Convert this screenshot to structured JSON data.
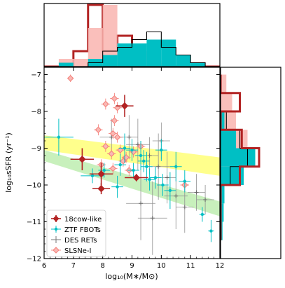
{
  "chart_data": {
    "type": "scatter",
    "xlabel": "log₁₀(M∗/M⊙)",
    "ylabel": "log₁₀sSFR (yr⁻¹)",
    "xlim": [
      6,
      12
    ],
    "ylim": [
      -12,
      -6.8
    ],
    "xticks": [
      6,
      7,
      8,
      9,
      10,
      11,
      12
    ],
    "xtick_labels": [
      "6",
      "7",
      "8",
      "9",
      "10",
      "11",
      "12"
    ],
    "yticks": [
      -12,
      -11,
      -10,
      -9,
      -8,
      -7
    ],
    "ytick_labels": [
      "−12",
      "−11",
      "−10",
      "−9",
      "−8",
      "−7"
    ],
    "grid": false,
    "legend_position": "lower-left",
    "colors": {
      "cow": "#b22222",
      "ztf": "#00bfc4",
      "des": "#909090",
      "slsn": "#f4837d",
      "slsn_fill": "#f9b8b4",
      "yellow_band": "#ffff66",
      "green_band": "#b6eba6",
      "top_des_hist": "#000000"
    },
    "series": [
      {
        "name": "18cow-like",
        "marker": "diamond-filled",
        "points": [
          {
            "x": 7.3,
            "y": -9.3,
            "xerr": 0.4,
            "yerr": 0.3
          },
          {
            "x": 7.95,
            "y": -9.7,
            "xerr": 0.4,
            "yerr": 0.3
          },
          {
            "x": 7.95,
            "y": -10.1,
            "xerr": 0.3,
            "yerr": 0.15
          },
          {
            "x": 8.75,
            "y": -7.85,
            "xerr": 0.3,
            "yerr": 0.3
          },
          {
            "x": 9.15,
            "y": -9.8,
            "xerr": 0.4,
            "yerr": 0.1
          }
        ]
      },
      {
        "name": "ZTF FBOTs",
        "marker": "dot",
        "points": [
          {
            "x": 6.5,
            "y": -8.7,
            "xerr": 0.5,
            "yerr": 0.5
          },
          {
            "x": 7.65,
            "y": -9.75,
            "xerr": 0.4,
            "yerr": 0.2
          },
          {
            "x": 8.05,
            "y": -9.6,
            "xerr": 0.2,
            "yerr": 0.2
          },
          {
            "x": 8.6,
            "y": -9.45,
            "xerr": 0.2,
            "yerr": 0.3
          },
          {
            "x": 8.75,
            "y": -9.0,
            "xerr": 0.2,
            "yerr": 0.4
          },
          {
            "x": 9.0,
            "y": -9.05,
            "xerr": 0.2,
            "yerr": 0.3
          },
          {
            "x": 9.3,
            "y": -9.2,
            "xerr": 0.2,
            "yerr": 0.4
          },
          {
            "x": 9.5,
            "y": -9.5,
            "xerr": 0.2,
            "yerr": 0.4
          },
          {
            "x": 9.6,
            "y": -9.85,
            "xerr": 0.2,
            "yerr": 0.3
          },
          {
            "x": 9.8,
            "y": -9.8,
            "xerr": 0.2,
            "yerr": 0.3
          },
          {
            "x": 10.05,
            "y": -10.0,
            "xerr": 0.2,
            "yerr": 0.3
          },
          {
            "x": 10.3,
            "y": -10.15,
            "xerr": 0.2,
            "yerr": 0.5
          },
          {
            "x": 10.5,
            "y": -9.5,
            "xerr": 0.2,
            "yerr": 0.4
          },
          {
            "x": 10.8,
            "y": -9.9,
            "xerr": 0.2,
            "yerr": 0.3
          },
          {
            "x": 11.7,
            "y": -11.25,
            "xerr": 0.1,
            "yerr": 0.3
          },
          {
            "x": 11.4,
            "y": -10.8,
            "xerr": 0.1,
            "yerr": 0.2
          },
          {
            "x": 8.5,
            "y": -10.05,
            "xerr": 0.2,
            "yerr": 0.3
          },
          {
            "x": 9.4,
            "y": -9.35,
            "xerr": 0.2,
            "yerr": 0.3
          },
          {
            "x": 10.0,
            "y": -9.05,
            "xerr": 0.2,
            "yerr": 0.3
          },
          {
            "x": 9.05,
            "y": -9.6,
            "xerr": 0.2,
            "yerr": 0.2
          }
        ]
      },
      {
        "name": "DES RETs",
        "marker": "plus",
        "points": [
          {
            "x": 8.3,
            "y": -8.7,
            "xerr": 0.4,
            "yerr": 0.5
          },
          {
            "x": 8.9,
            "y": -8.7,
            "xerr": 0.3,
            "yerr": 0.6
          },
          {
            "x": 9.2,
            "y": -8.9,
            "xerr": 0.4,
            "yerr": 0.7
          },
          {
            "x": 9.6,
            "y": -9.2,
            "xerr": 0.3,
            "yerr": 0.5
          },
          {
            "x": 9.9,
            "y": -9.5,
            "xerr": 0.4,
            "yerr": 0.9
          },
          {
            "x": 10.2,
            "y": -9.8,
            "xerr": 0.3,
            "yerr": 0.7
          },
          {
            "x": 10.5,
            "y": -10.3,
            "xerr": 0.4,
            "yerr": 0.9
          },
          {
            "x": 10.8,
            "y": -10.6,
            "xerr": 0.3,
            "yerr": 0.7
          },
          {
            "x": 11.2,
            "y": -10.2,
            "xerr": 0.3,
            "yerr": 0.5
          },
          {
            "x": 9.3,
            "y": -10.5,
            "xerr": 0.5,
            "yerr": 1.0
          },
          {
            "x": 9.7,
            "y": -10.9,
            "xerr": 0.5,
            "yerr": 1.0
          },
          {
            "x": 11.5,
            "y": -10.4,
            "xerr": 0.3,
            "yerr": 0.4
          },
          {
            "x": 10.0,
            "y": -8.8,
            "xerr": 0.3,
            "yerr": 0.5
          }
        ]
      },
      {
        "name": "SLSNe-I",
        "marker": "diamond-open",
        "points": [
          {
            "x": 6.9,
            "y": -7.1,
            "xerr": 0.1,
            "yerr": 0.1
          },
          {
            "x": 8.1,
            "y": -7.8,
            "xerr": 0.15,
            "yerr": 0.15
          },
          {
            "x": 8.4,
            "y": -7.65,
            "xerr": 0.15,
            "yerr": 0.15
          },
          {
            "x": 8.5,
            "y": -7.9,
            "xerr": 0.15,
            "yerr": 0.15
          },
          {
            "x": 8.4,
            "y": -8.25,
            "xerr": 0.15,
            "yerr": 0.15
          },
          {
            "x": 7.85,
            "y": -8.5,
            "xerr": 0.15,
            "yerr": 0.15
          },
          {
            "x": 8.35,
            "y": -8.6,
            "xerr": 0.15,
            "yerr": 0.15
          },
          {
            "x": 8.5,
            "y": -8.7,
            "xerr": 0.15,
            "yerr": 0.15
          },
          {
            "x": 8.1,
            "y": -8.95,
            "xerr": 0.15,
            "yerr": 0.15
          },
          {
            "x": 8.6,
            "y": -9.05,
            "xerr": 0.15,
            "yerr": 0.15
          },
          {
            "x": 8.3,
            "y": -9.15,
            "xerr": 0.15,
            "yerr": 0.15
          },
          {
            "x": 8.7,
            "y": -9.35,
            "xerr": 0.15,
            "yerr": 0.15
          },
          {
            "x": 8.35,
            "y": -9.55,
            "xerr": 0.15,
            "yerr": 0.15
          },
          {
            "x": 8.8,
            "y": -9.25,
            "xerr": 0.15,
            "yerr": 0.15
          },
          {
            "x": 9.05,
            "y": -9.1,
            "xerr": 0.15,
            "yerr": 0.15
          },
          {
            "x": 8.9,
            "y": -9.6,
            "xerr": 0.15,
            "yerr": 0.15
          },
          {
            "x": 10.8,
            "y": -10.0,
            "xerr": 0.15,
            "yerr": 0.15
          },
          {
            "x": 7.95,
            "y": -9.45,
            "xerr": 0.15,
            "yerr": 0.15
          },
          {
            "x": 9.3,
            "y": -8.95,
            "xerr": 0.15,
            "yerr": 0.15
          }
        ]
      }
    ],
    "bands": [
      {
        "color_key": "yellow_band",
        "x": [
          6,
          12
        ],
        "upper": [
          -8.65,
          -9.25
        ],
        "lower": [
          -9.05,
          -9.75
        ]
      },
      {
        "color_key": "green_band",
        "x": [
          6,
          12
        ],
        "upper": [
          -9.05,
          -10.45
        ],
        "lower": [
          -9.35,
          -10.85
        ]
      }
    ],
    "top_histogram": {
      "bins": [
        6,
        6.5,
        7,
        7.5,
        8,
        8.5,
        9,
        9.5,
        10,
        10.5,
        11,
        11.5,
        12
      ],
      "series": [
        {
          "name": "18cow-like",
          "counts": [
            0,
            0,
            0.4,
            1.6,
            0.4,
            0.8,
            0,
            0,
            0,
            0,
            0,
            0
          ],
          "style": "step-thick",
          "color_key": "cow"
        },
        {
          "name": "SLSNe-I",
          "counts": [
            0,
            0.2,
            0.2,
            1.0,
            1.6,
            0.6,
            0.4,
            0.1,
            0,
            0,
            0,
            0
          ],
          "style": "fill",
          "color_key": "slsn_fill"
        },
        {
          "name": "ZTF FBOTs",
          "counts": [
            0,
            0.1,
            0,
            0.2,
            0.3,
            0.6,
            0.6,
            0.7,
            0.7,
            0.3,
            0.1,
            0
          ],
          "style": "fill",
          "color_key": "ztf"
        },
        {
          "name": "DES RETs",
          "counts": [
            0,
            0,
            0,
            0.1,
            0.4,
            0.5,
            0.7,
            0.9,
            0.5,
            0.3,
            0.1,
            0
          ],
          "style": "step",
          "color_key": "top_des_hist"
        }
      ]
    },
    "right_histogram": {
      "bins": [
        -11.5,
        -11.0,
        -10.5,
        -10.0,
        -9.5,
        -9.0,
        -8.5,
        -8.0,
        -7.5,
        -7.0
      ],
      "series": [
        {
          "name": "SLSNe-I",
          "counts": [
            0,
            0,
            0.1,
            0.3,
            0.9,
            0.7,
            0.4,
            0.3,
            0.15
          ],
          "style": "fill",
          "color_key": "slsn_fill"
        },
        {
          "name": "ZTF FBOTs",
          "counts": [
            0.05,
            0.08,
            0.1,
            0.6,
            0.9,
            0.4,
            0.1,
            0,
            0
          ],
          "style": "fill",
          "color_key": "ztf"
        },
        {
          "name": "DES RETs",
          "counts": [
            0,
            0,
            0,
            0.25,
            0.7,
            0.5,
            0.15,
            0,
            0
          ],
          "style": "step",
          "color_key": "top_des_hist"
        },
        {
          "name": "18cow-like",
          "counts": [
            0,
            0,
            0,
            0.5,
            1.0,
            0.55,
            0,
            0.5,
            0
          ],
          "style": "step-thick",
          "color_key": "cow"
        }
      ]
    }
  }
}
